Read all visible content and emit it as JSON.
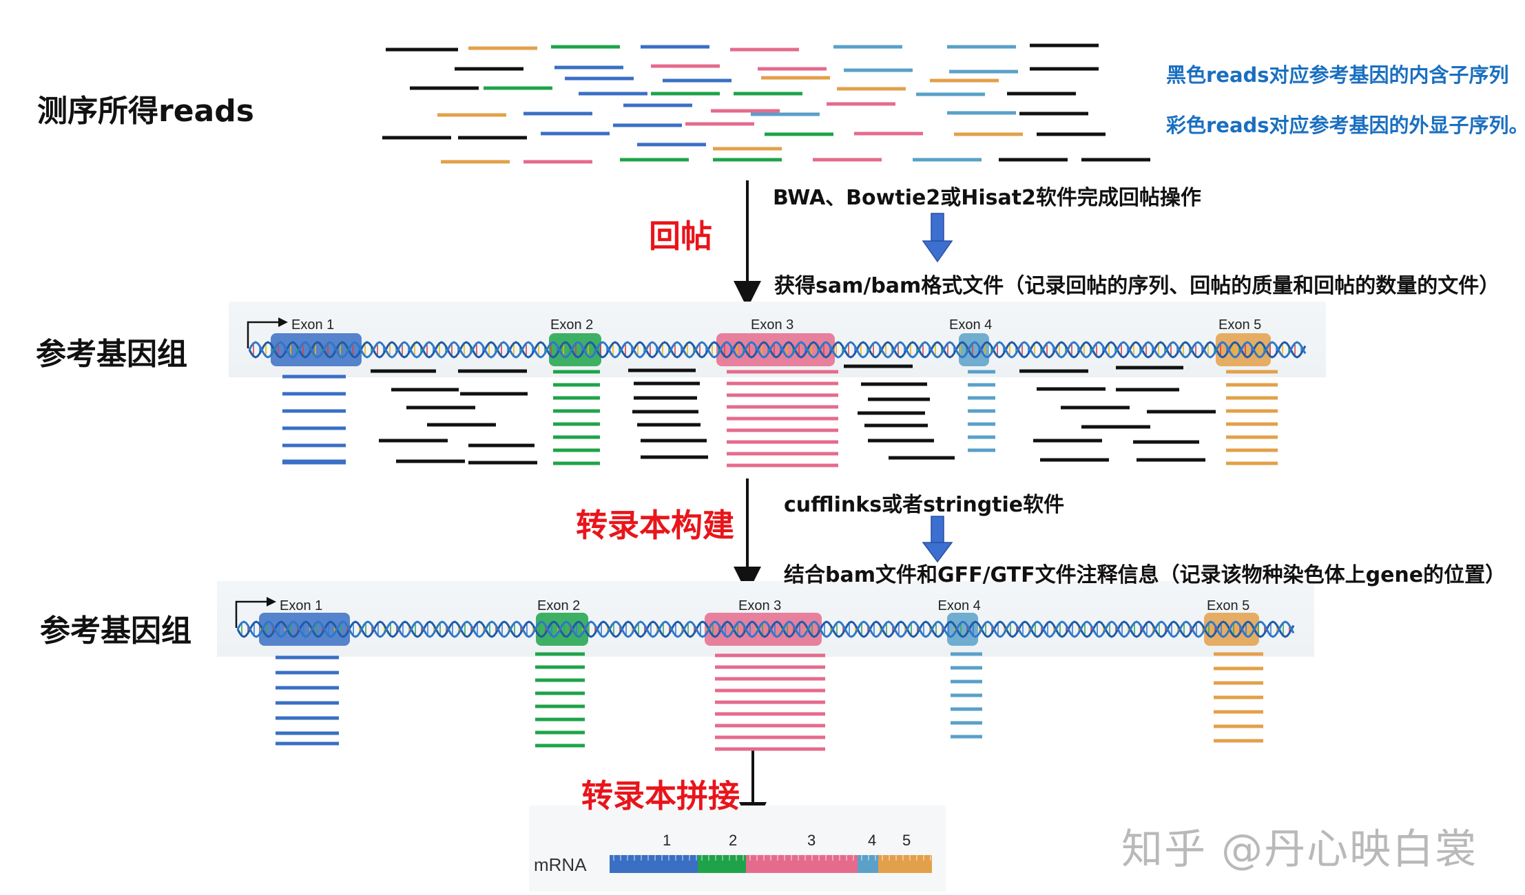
{
  "labels": {
    "reads": "测序所得reads",
    "genome1": "参考基因组",
    "genome2": "参考基因组",
    "step_align": "回帖",
    "step_assemble": "转录本构建",
    "step_splice": "转录本拼接"
  },
  "legend": {
    "black": "黑色reads对应参考基因的内含子序列",
    "colored": "彩色reads对应参考基因的外显子序列。"
  },
  "notes": {
    "align_tools": "BWA、Bowtie2或Hisat2软件完成回帖操作",
    "align_output": "获得sam/bam格式文件（记录回帖的序列、回帖的质量和回帖的数量的文件）",
    "assemble_tools": "cufflinks或者stringtie软件",
    "assemble_output": "结合bam文件和GFF/GTF文件注释信息（记录该物种染色体上gene的位置）"
  },
  "exons": [
    {
      "label": "Exon  1",
      "color": "#3a6fc4"
    },
    {
      "label": "Exon  2",
      "color": "#1fa34a"
    },
    {
      "label": "Exon  3",
      "color": "#e56b8c"
    },
    {
      "label": "Exon 4",
      "color": "#5aa0c8"
    },
    {
      "label": "Exon 5",
      "color": "#e3a04a"
    }
  ],
  "mrna": {
    "label": "mRNA",
    "numbers": [
      "1",
      "2",
      "3",
      "4",
      "5"
    ]
  },
  "watermark": "知乎 @丹心映白裳",
  "colors": {
    "intron": "#111111",
    "red": "#e8151b",
    "blue_arrow": "#3c6fd0"
  }
}
